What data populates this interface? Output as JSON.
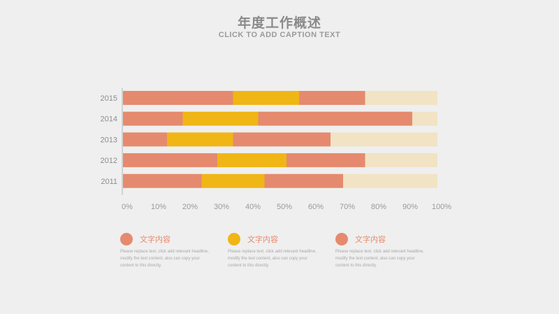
{
  "header": {
    "title": "年度工作概述",
    "caption": "CLICK TO ADD CAPTION TEXT"
  },
  "chart_data": {
    "type": "bar",
    "orientation": "horizontal",
    "stacked": true,
    "categories": [
      "2015",
      "2014",
      "2013",
      "2012",
      "2011"
    ],
    "series": [
      {
        "values": [
          35,
          19,
          14,
          30,
          25
        ]
      },
      {
        "values": [
          21,
          24,
          21,
          22,
          20
        ]
      },
      {
        "values": [
          21,
          49,
          31,
          25,
          25
        ]
      },
      {
        "values": [
          23,
          8,
          34,
          23,
          30
        ]
      }
    ],
    "xlim": [
      0,
      100
    ],
    "xticks": [
      "0%",
      "10%",
      "20%",
      "30%",
      "40%",
      "50%",
      "60%",
      "70%",
      "80%",
      "90%",
      "100%"
    ],
    "grid": false,
    "colors": [
      "#e58a6e",
      "#f0b616",
      "#e58a6e",
      "#f1e3c4"
    ]
  },
  "legend": {
    "items": [
      {
        "label": "文字内容",
        "color": "#e58a6e",
        "desc": "Please replace text, click add relevant headline, modify the text content, also can copy your content to this directly."
      },
      {
        "label": "文字内容",
        "color": "#f0b616",
        "desc": "Please replace text, click add relevant headline, modify the text content, also can copy your content to this directly."
      },
      {
        "label": "文字内容",
        "color": "#e58a6e",
        "desc": "Please replace text, click add relevant headline, modify the text content, also can copy your content to this directly."
      }
    ]
  }
}
